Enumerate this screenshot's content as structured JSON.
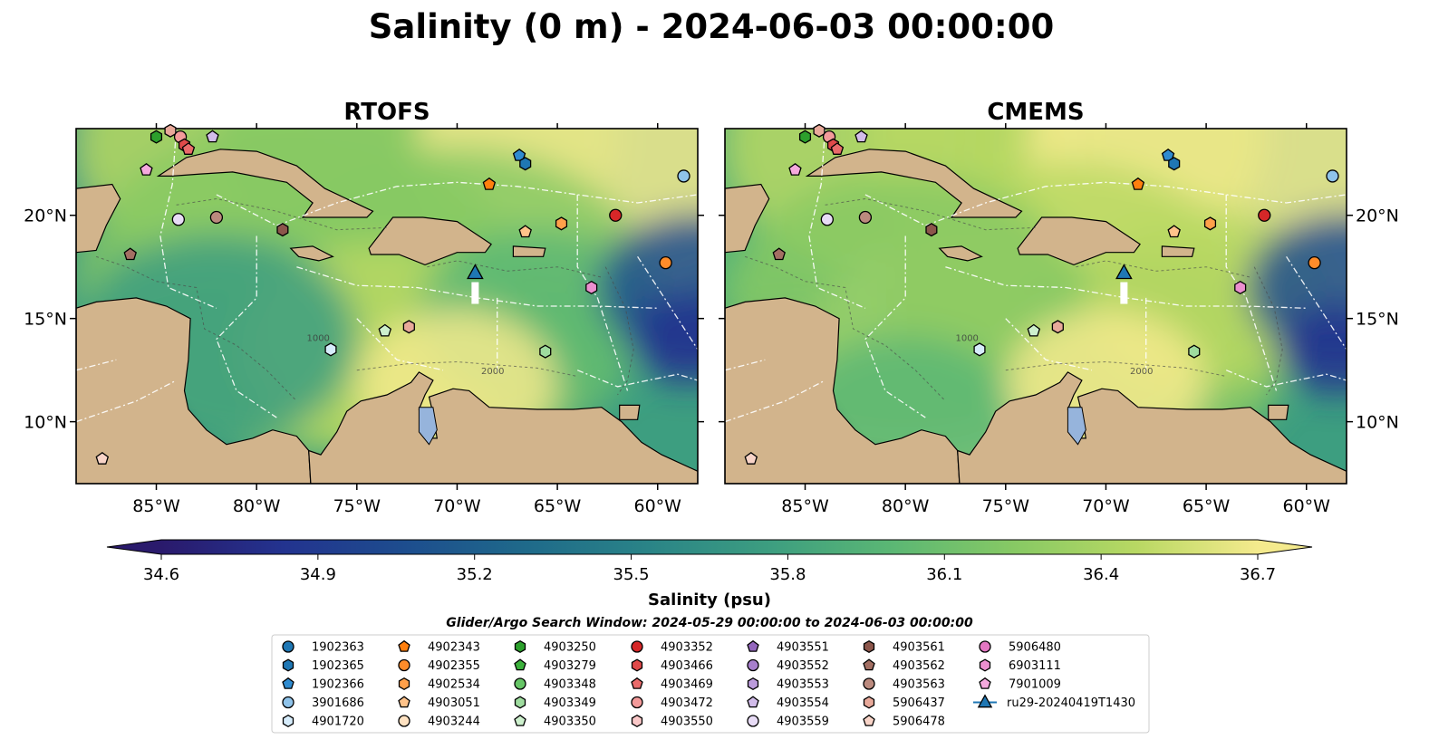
{
  "chart_data": {
    "type": "heatmap",
    "title": "Salinity (0 m) - 2024-06-03 00:00:00",
    "panels": [
      {
        "title": "RTOFS"
      },
      {
        "title": "CMEMS"
      }
    ],
    "map_extent": {
      "lon": [
        -89,
        -58
      ],
      "lat": [
        7,
        24.2
      ]
    },
    "x_ticks": [
      {
        "lon": -85,
        "label": "85°W"
      },
      {
        "lon": -80,
        "label": "80°W"
      },
      {
        "lon": -75,
        "label": "75°W"
      },
      {
        "lon": -70,
        "label": "70°W"
      },
      {
        "lon": -65,
        "label": "65°W"
      },
      {
        "lon": -60,
        "label": "60°W"
      }
    ],
    "y_ticks": [
      {
        "lat": 20,
        "label": "20°N"
      },
      {
        "lat": 15,
        "label": "15°N"
      },
      {
        "lat": 10,
        "label": "10°N"
      }
    ],
    "colorbar": {
      "label": "Salinity (psu)",
      "vmin": 34.6,
      "vmax": 36.7,
      "ticks": [
        "34.6",
        "34.9",
        "35.2",
        "35.5",
        "35.8",
        "36.1",
        "36.4",
        "36.7"
      ],
      "extend": "both",
      "colormap": [
        "#2a1a6c",
        "#23338f",
        "#1d4d8e",
        "#1f6a8a",
        "#2a8487",
        "#3d9e80",
        "#5bb774",
        "#87c964",
        "#b8d863",
        "#f4ea8d"
      ]
    },
    "contour_labels": [
      "1000",
      "2000"
    ],
    "search_window": "Glider/Argo Search Window: 2024-05-29 00:00:00 to 2024-06-03 00:00:00",
    "legend": [
      {
        "label": "1902363",
        "color": "#1f77b4",
        "marker": "circle"
      },
      {
        "label": "1902365",
        "color": "#1f77b4",
        "marker": "hexagon"
      },
      {
        "label": "1902366",
        "color": "#2f8bd0",
        "marker": "pentagon"
      },
      {
        "label": "3901686",
        "color": "#8fc3ea",
        "marker": "circle"
      },
      {
        "label": "4901720",
        "color": "#d6ecfb",
        "marker": "hexagon"
      },
      {
        "label": "4902343",
        "color": "#ff7f0e",
        "marker": "pentagon"
      },
      {
        "label": "4902355",
        "color": "#ff8c2a",
        "marker": "circle"
      },
      {
        "label": "4902534",
        "color": "#ffa04a",
        "marker": "hexagon"
      },
      {
        "label": "4903051",
        "color": "#ffc38a",
        "marker": "pentagon"
      },
      {
        "label": "4903244",
        "color": "#ffe2c2",
        "marker": "circle"
      },
      {
        "label": "4903250",
        "color": "#2ca02c",
        "marker": "hexagon"
      },
      {
        "label": "4903279",
        "color": "#3cb13c",
        "marker": "pentagon"
      },
      {
        "label": "4903348",
        "color": "#66c566",
        "marker": "circle"
      },
      {
        "label": "4903349",
        "color": "#9fdc9f",
        "marker": "hexagon"
      },
      {
        "label": "4903350",
        "color": "#cdf0cd",
        "marker": "pentagon"
      },
      {
        "label": "4903352",
        "color": "#d62728",
        "marker": "circle"
      },
      {
        "label": "4903466",
        "color": "#e04a4a",
        "marker": "hexagon"
      },
      {
        "label": "4903469",
        "color": "#ea6b6b",
        "marker": "pentagon"
      },
      {
        "label": "4903472",
        "color": "#f39a9a",
        "marker": "circle"
      },
      {
        "label": "4903550",
        "color": "#fac8c8",
        "marker": "hexagon"
      },
      {
        "label": "4903551",
        "color": "#9467bd",
        "marker": "pentagon"
      },
      {
        "label": "4903552",
        "color": "#a77fcc",
        "marker": "circle"
      },
      {
        "label": "4903553",
        "color": "#bb9bdb",
        "marker": "hexagon"
      },
      {
        "label": "4903554",
        "color": "#d2bcea",
        "marker": "pentagon"
      },
      {
        "label": "4903559",
        "color": "#e8dcf6",
        "marker": "circle"
      },
      {
        "label": "4903561",
        "color": "#8c564b",
        "marker": "hexagon"
      },
      {
        "label": "4903562",
        "color": "#a36f63",
        "marker": "pentagon"
      },
      {
        "label": "4903563",
        "color": "#bb8a7e",
        "marker": "circle"
      },
      {
        "label": "5906437",
        "color": "#e8a99a",
        "marker": "hexagon"
      },
      {
        "label": "5906478",
        "color": "#f8d4c8",
        "marker": "pentagon"
      },
      {
        "label": "5906480",
        "color": "#e377c2",
        "marker": "circle"
      },
      {
        "label": "6903111",
        "color": "#eb8fcf",
        "marker": "hexagon"
      },
      {
        "label": "7901009",
        "color": "#f5a9dd",
        "marker": "pentagon"
      },
      {
        "label": "ru29-20240419T1430",
        "color": "#1f77b4",
        "marker": "triangle-line"
      }
    ],
    "floats": [
      {
        "id": "4903250",
        "lon": -85.0,
        "lat": 23.8
      },
      {
        "id": "5906437",
        "lon": -84.3,
        "lat": 24.1
      },
      {
        "id": "4903472",
        "lon": -83.8,
        "lat": 23.8
      },
      {
        "id": "4903466",
        "lon": -83.6,
        "lat": 23.4
      },
      {
        "id": "4903469",
        "lon": -83.4,
        "lat": 23.2
      },
      {
        "id": "4903554",
        "lon": -82.2,
        "lat": 23.8
      },
      {
        "id": "7901009",
        "lon": -85.5,
        "lat": 22.2
      },
      {
        "id": "4903559",
        "lon": -83.9,
        "lat": 19.8
      },
      {
        "id": "4903563",
        "lon": -82.0,
        "lat": 19.9
      },
      {
        "id": "4903561",
        "lon": -78.7,
        "lat": 19.3
      },
      {
        "id": "4903562",
        "lon": -86.3,
        "lat": 18.1
      },
      {
        "id": "1902366",
        "lon": -66.9,
        "lat": 22.9
      },
      {
        "id": "1902365",
        "lon": -66.6,
        "lat": 22.5
      },
      {
        "id": "4902343",
        "lon": -68.4,
        "lat": 21.5
      },
      {
        "id": "3901686",
        "lon": -58.7,
        "lat": 21.9
      },
      {
        "id": "4903352",
        "lon": -62.1,
        "lat": 20.0
      },
      {
        "id": "4902534",
        "lon": -64.8,
        "lat": 19.6
      },
      {
        "id": "4903051",
        "lon": -66.6,
        "lat": 19.2
      },
      {
        "id": "4902355",
        "lon": -59.6,
        "lat": 17.7
      },
      {
        "id": "6903111",
        "lon": -63.3,
        "lat": 16.5
      },
      {
        "id": "4903350",
        "lon": -73.6,
        "lat": 14.4
      },
      {
        "id": "5906437",
        "lon": -72.4,
        "lat": 14.6
      },
      {
        "id": "4901720",
        "lon": -76.3,
        "lat": 13.5
      },
      {
        "id": "4903349",
        "lon": -65.6,
        "lat": 13.4
      },
      {
        "id": "5906478",
        "lon": -87.7,
        "lat": 8.2
      }
    ],
    "glider": {
      "id": "ru29-20240419T1430",
      "lon": -69.1,
      "lat": 17.2
    }
  }
}
